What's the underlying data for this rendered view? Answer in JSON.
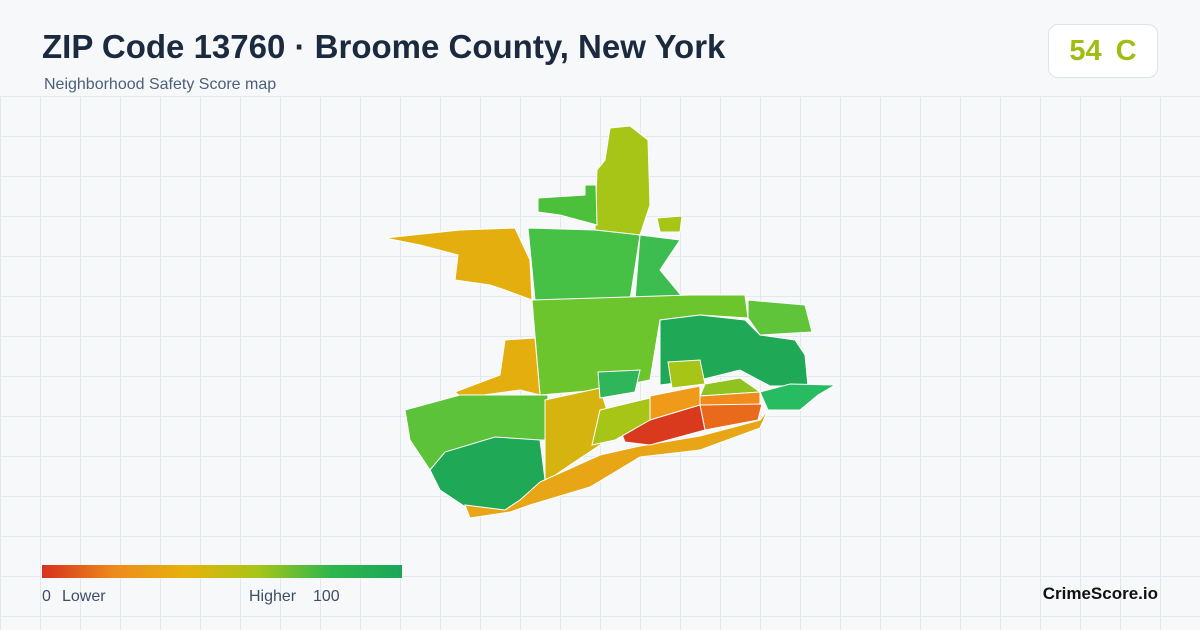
{
  "header": {
    "title": "ZIP Code 13760 · Broome County, New York",
    "subtitle": "Neighborhood Safety Score map"
  },
  "score": {
    "value": 54,
    "grade": "C"
  },
  "legend": {
    "min": 0,
    "min_label": "Lower",
    "max_label": "Higher",
    "max": 100
  },
  "footer": {
    "brand": "CrimeScore.io"
  }
}
